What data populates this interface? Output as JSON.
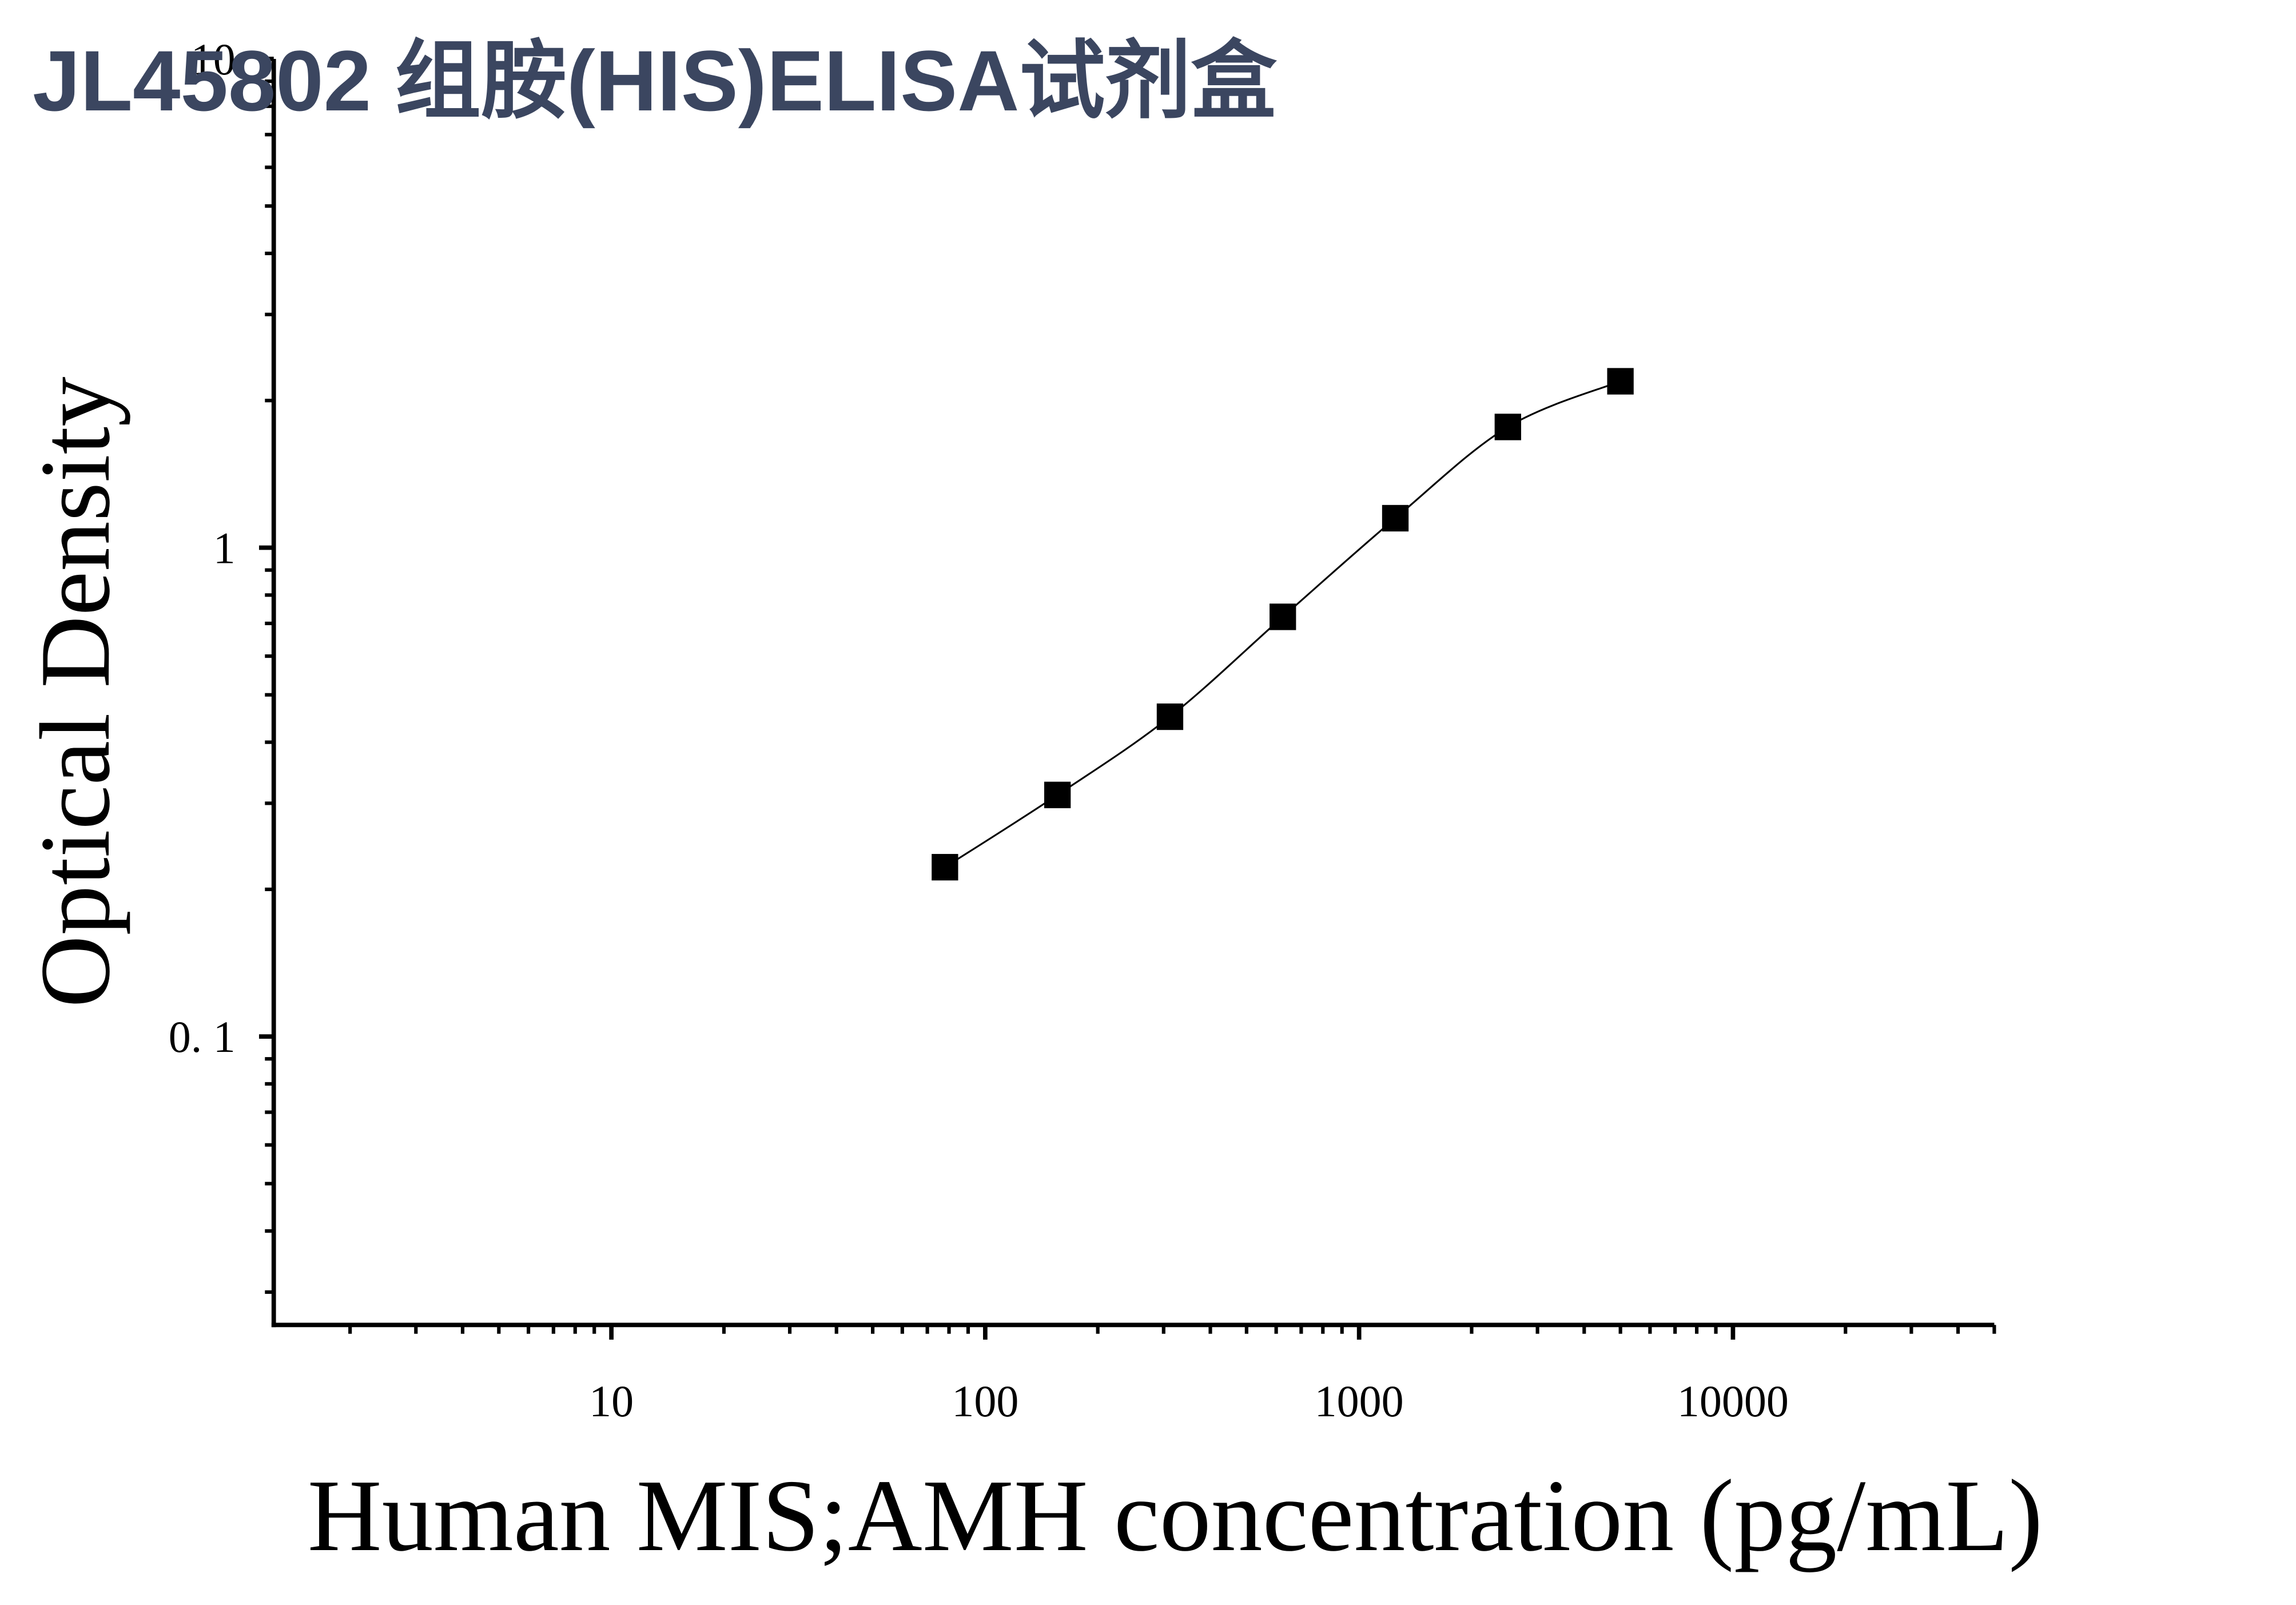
{
  "chart_data": {
    "type": "scatter",
    "title": "JL45802 组胺(HIS)ELISA试剂盒",
    "x_label": "Human MIS;AMH concentration (pg/mL)",
    "y_label": "Optical Density",
    "x": [
      78,
      156,
      312,
      625,
      1250,
      2500,
      5000
    ],
    "values": [
      0.222,
      0.312,
      0.451,
      0.722,
      1.149,
      1.766,
      2.19
    ],
    "color": "#000000",
    "curve": true,
    "x_log": true,
    "y_log": true,
    "xlim": [
      1.25,
      50000
    ],
    "ylim": [
      0.0257,
      10
    ],
    "xticks": [
      10,
      100,
      1000,
      10000
    ],
    "yticks": [
      {
        "value": 0.1,
        "label": "0. 1"
      },
      1,
      10
    ],
    "xminor_ticks": [
      2,
      3,
      4,
      5,
      6,
      7,
      8,
      9,
      20,
      30,
      40,
      50,
      60,
      70,
      80,
      90,
      200,
      300,
      400,
      500,
      600,
      700,
      800,
      900,
      2000,
      3000,
      4000,
      5000,
      6000,
      7000,
      8000,
      9000,
      20000,
      30000,
      40000,
      50000
    ],
    "yminor_ticks": [
      0.03,
      0.04,
      0.05,
      0.06,
      0.07,
      0.08,
      0.09,
      0.2,
      0.3,
      0.4,
      0.5,
      0.6,
      0.7,
      0.8,
      0.9,
      2,
      3,
      4,
      5,
      6,
      7,
      8,
      9
    ],
    "grid": false
  }
}
